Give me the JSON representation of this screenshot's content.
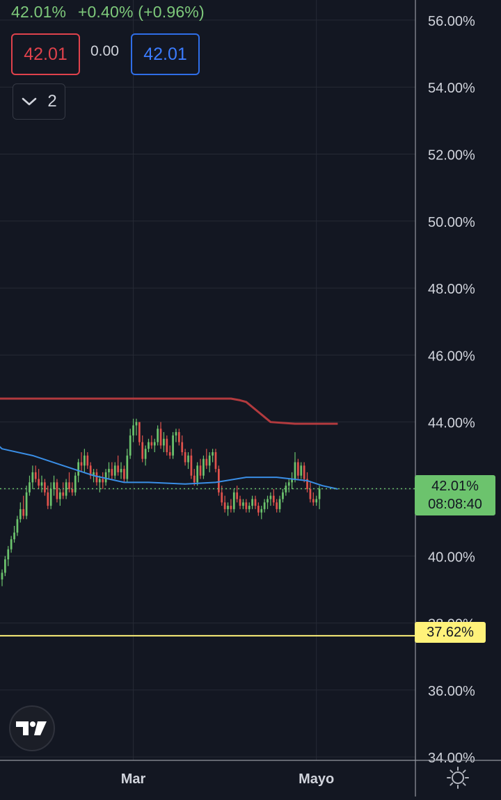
{
  "header": {
    "last_price": "42.01%",
    "change": "+0.40% (+0.96%)"
  },
  "order": {
    "sell_price": "42.01",
    "spread": "0.00",
    "buy_price": "42.01"
  },
  "indicators_toggle": {
    "count": "2",
    "icon": "chevron-down-icon"
  },
  "price_tag": {
    "price": "42.01%",
    "countdown": "08:08:40"
  },
  "level_tag": {
    "price": "37.62%"
  },
  "footer": {
    "logo_icon": "tradingview-logo-icon",
    "settings_icon": "gear-icon"
  },
  "colors": {
    "background": "#131722",
    "grid": "#262a35",
    "up": "#6cc36d",
    "down": "#e0524c",
    "ma_blue": "#3a8ee6",
    "ma_red": "#b23a3e",
    "level_line": "#fff27a"
  },
  "chart_data": {
    "type": "candlestick",
    "y_unit": "%",
    "ylim": [
      33.9,
      56.6
    ],
    "y_ticks": [
      "56.00%",
      "54.00%",
      "52.00%",
      "50.00%",
      "48.00%",
      "46.00%",
      "44.00%",
      "42.00%",
      "40.00%",
      "38.00%",
      "36.00%",
      "34.00%"
    ],
    "y_tick_values": [
      56,
      54,
      52,
      50,
      48,
      46,
      44,
      42,
      40,
      38,
      36,
      34
    ],
    "x_ticks": [
      {
        "label": "Mar",
        "bar": 43
      },
      {
        "label": "Mayo",
        "bar": 103
      }
    ],
    "bar_count": 110,
    "grid": true,
    "candles": [
      [
        39.3,
        39.6,
        39.1,
        39.5
      ],
      [
        39.5,
        40.0,
        39.4,
        39.9
      ],
      [
        39.9,
        40.3,
        39.7,
        40.2
      ],
      [
        40.2,
        40.6,
        40.1,
        40.5
      ],
      [
        40.5,
        40.9,
        40.4,
        40.7
      ],
      [
        40.7,
        41.2,
        40.6,
        41.1
      ],
      [
        41.1,
        41.6,
        41.0,
        41.4
      ],
      [
        41.4,
        41.8,
        41.1,
        41.2
      ],
      [
        41.2,
        42.1,
        41.1,
        41.9
      ],
      [
        41.9,
        42.4,
        41.8,
        42.2
      ],
      [
        42.2,
        42.7,
        42.0,
        42.5
      ],
      [
        42.5,
        42.7,
        42.2,
        42.3
      ],
      [
        42.3,
        42.6,
        42.0,
        42.1
      ],
      [
        42.1,
        42.4,
        41.9,
        42.2
      ],
      [
        42.2,
        42.3,
        41.8,
        41.9
      ],
      [
        41.9,
        42.1,
        41.4,
        41.5
      ],
      [
        41.5,
        42.2,
        41.4,
        42.0
      ],
      [
        42.0,
        42.4,
        41.8,
        42.2
      ],
      [
        42.2,
        42.3,
        41.6,
        41.7
      ],
      [
        41.7,
        42.0,
        41.5,
        41.9
      ],
      [
        41.9,
        42.2,
        41.7,
        41.8
      ],
      [
        41.8,
        42.3,
        41.7,
        42.2
      ],
      [
        42.2,
        42.5,
        41.9,
        42.0
      ],
      [
        42.0,
        42.2,
        41.8,
        41.9
      ],
      [
        41.9,
        42.5,
        41.8,
        42.4
      ],
      [
        42.4,
        42.9,
        42.2,
        42.8
      ],
      [
        42.8,
        43.1,
        42.5,
        42.7
      ],
      [
        42.7,
        43.2,
        42.5,
        43.0
      ],
      [
        43.0,
        43.1,
        42.6,
        42.7
      ],
      [
        42.7,
        42.8,
        42.3,
        42.4
      ],
      [
        42.4,
        42.6,
        42.2,
        42.5
      ],
      [
        42.5,
        42.6,
        42.1,
        42.2
      ],
      [
        42.2,
        42.4,
        41.9,
        42.3
      ],
      [
        42.3,
        42.5,
        42.0,
        42.2
      ],
      [
        42.2,
        42.6,
        42.1,
        42.5
      ],
      [
        42.5,
        42.8,
        42.3,
        42.6
      ],
      [
        42.6,
        42.8,
        42.3,
        42.4
      ],
      [
        42.4,
        42.8,
        42.3,
        42.7
      ],
      [
        42.7,
        43.0,
        42.4,
        42.5
      ],
      [
        42.5,
        42.8,
        42.3,
        42.6
      ],
      [
        42.6,
        42.7,
        42.2,
        42.3
      ],
      [
        42.3,
        43.2,
        42.2,
        43.0
      ],
      [
        43.0,
        43.8,
        42.9,
        43.6
      ],
      [
        43.6,
        44.1,
        43.4,
        43.9
      ],
      [
        43.9,
        44.1,
        43.6,
        44.0
      ],
      [
        44.0,
        44.0,
        43.3,
        43.4
      ],
      [
        43.4,
        43.6,
        42.8,
        42.9
      ],
      [
        42.9,
        43.3,
        42.7,
        43.2
      ],
      [
        43.2,
        43.5,
        43.1,
        43.4
      ],
      [
        43.4,
        43.6,
        43.2,
        43.3
      ],
      [
        43.3,
        43.5,
        43.1,
        43.4
      ],
      [
        43.4,
        43.9,
        43.3,
        43.8
      ],
      [
        43.8,
        44.0,
        43.2,
        43.3
      ],
      [
        43.3,
        43.7,
        43.1,
        43.5
      ],
      [
        43.5,
        43.6,
        43.0,
        43.1
      ],
      [
        43.1,
        43.3,
        42.9,
        43.0
      ],
      [
        43.0,
        43.7,
        42.9,
        43.6
      ],
      [
        43.6,
        43.8,
        43.4,
        43.7
      ],
      [
        43.7,
        43.8,
        43.3,
        43.4
      ],
      [
        43.4,
        43.6,
        43.0,
        43.1
      ],
      [
        43.1,
        43.2,
        42.7,
        42.8
      ],
      [
        42.8,
        43.1,
        42.6,
        43.0
      ],
      [
        43.0,
        43.2,
        42.3,
        42.4
      ],
      [
        42.4,
        42.6,
        42.1,
        42.2
      ],
      [
        42.2,
        42.8,
        42.1,
        42.7
      ],
      [
        42.7,
        42.9,
        42.3,
        42.4
      ],
      [
        42.4,
        43.0,
        42.3,
        42.9
      ],
      [
        42.9,
        43.2,
        42.6,
        42.7
      ],
      [
        42.7,
        43.1,
        42.5,
        43.0
      ],
      [
        43.0,
        43.2,
        42.8,
        43.1
      ],
      [
        43.1,
        43.2,
        42.5,
        42.6
      ],
      [
        42.6,
        42.7,
        41.8,
        41.9
      ],
      [
        41.9,
        42.1,
        41.5,
        41.6
      ],
      [
        41.6,
        41.8,
        41.3,
        41.4
      ],
      [
        41.4,
        41.6,
        41.2,
        41.5
      ],
      [
        41.5,
        41.7,
        41.3,
        41.4
      ],
      [
        41.4,
        42.0,
        41.3,
        41.9
      ],
      [
        41.9,
        42.1,
        41.6,
        41.7
      ],
      [
        41.7,
        41.8,
        41.4,
        41.5
      ],
      [
        41.5,
        41.7,
        41.4,
        41.6
      ],
      [
        41.6,
        41.7,
        41.3,
        41.4
      ],
      [
        41.4,
        41.6,
        41.3,
        41.5
      ],
      [
        41.5,
        41.8,
        41.4,
        41.7
      ],
      [
        41.7,
        41.8,
        41.4,
        41.5
      ],
      [
        41.5,
        41.6,
        41.2,
        41.3
      ],
      [
        41.3,
        41.5,
        41.1,
        41.4
      ],
      [
        41.4,
        41.7,
        41.3,
        41.6
      ],
      [
        41.6,
        41.8,
        41.4,
        41.7
      ],
      [
        41.7,
        41.9,
        41.5,
        41.8
      ],
      [
        41.8,
        42.0,
        41.5,
        41.6
      ],
      [
        41.6,
        41.7,
        41.3,
        41.4
      ],
      [
        41.4,
        41.8,
        41.3,
        41.7
      ],
      [
        41.7,
        42.0,
        41.6,
        41.9
      ],
      [
        41.9,
        42.2,
        41.8,
        42.1
      ],
      [
        42.1,
        42.3,
        41.9,
        42.2
      ],
      [
        42.2,
        42.5,
        42.0,
        42.3
      ],
      [
        42.3,
        43.1,
        42.2,
        42.8
      ],
      [
        42.8,
        42.9,
        42.3,
        42.4
      ],
      [
        42.4,
        42.8,
        42.3,
        42.7
      ],
      [
        42.7,
        42.8,
        42.2,
        42.3
      ],
      [
        42.3,
        42.5,
        41.9,
        42.0
      ],
      [
        42.0,
        42.2,
        41.6,
        41.7
      ],
      [
        41.7,
        41.9,
        41.5,
        41.6
      ],
      [
        41.6,
        41.8,
        41.5,
        41.7
      ],
      [
        41.7,
        42.1,
        41.4,
        42.01
      ]
    ],
    "series": [
      {
        "type": "line",
        "color": "#3a8ee6",
        "points": [
          [
            -6,
            43.7
          ],
          [
            0,
            43.2
          ],
          [
            10,
            43.0
          ],
          [
            20,
            42.7
          ],
          [
            30,
            42.4
          ],
          [
            40,
            42.2
          ],
          [
            48,
            42.2
          ],
          [
            60,
            42.15
          ],
          [
            70,
            42.2
          ],
          [
            80,
            42.35
          ],
          [
            90,
            42.35
          ],
          [
            100,
            42.25
          ],
          [
            105,
            42.1
          ],
          [
            110,
            42.0
          ]
        ]
      },
      {
        "type": "line",
        "color": "#b23a3e",
        "points": [
          [
            -6,
            44.9
          ],
          [
            -5.5,
            44.7
          ],
          [
            0,
            44.7
          ],
          [
            40,
            44.7
          ],
          [
            75,
            44.7
          ],
          [
            78,
            44.65
          ],
          [
            80,
            44.6
          ],
          [
            84,
            44.3
          ],
          [
            88,
            44.0
          ],
          [
            96,
            43.95
          ],
          [
            110,
            43.95
          ]
        ]
      }
    ],
    "last_price": 42.01,
    "level": 37.62
  }
}
